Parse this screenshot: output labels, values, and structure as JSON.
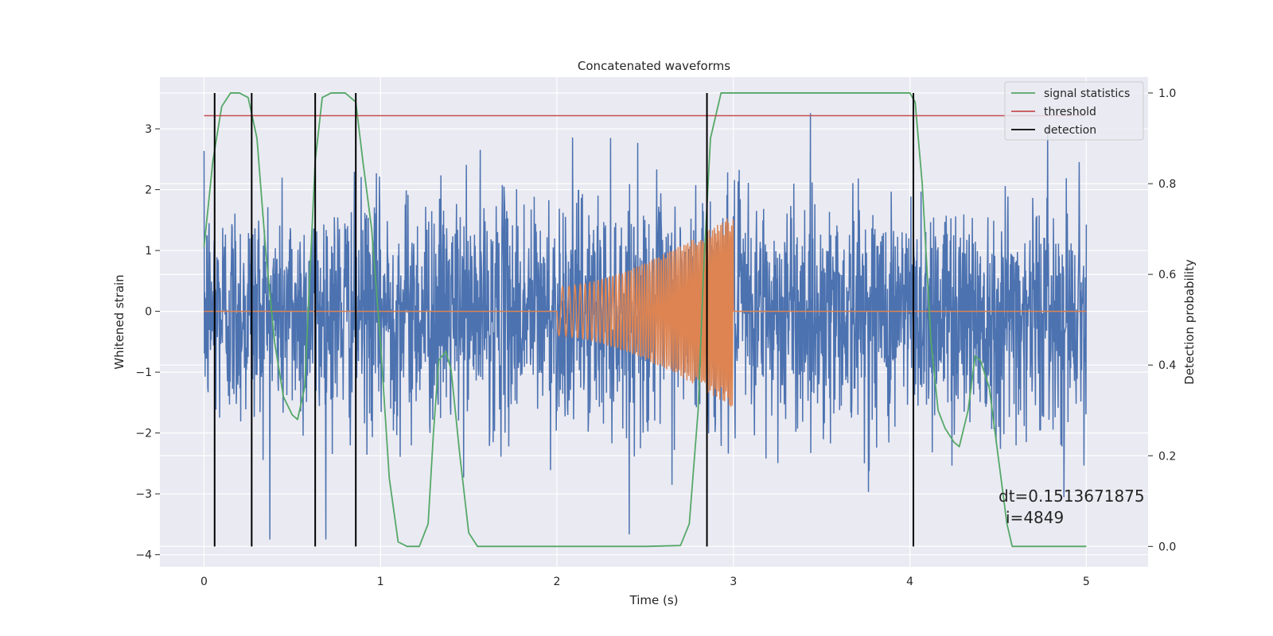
{
  "chart_data": {
    "type": "line",
    "title": "Concatenated waveforms",
    "xlabel": "Time (s)",
    "ylabel": "Whitened strain",
    "y2label": "Detection probability",
    "xlim": [
      -0.25,
      5.35
    ],
    "ylim": [
      -4.2,
      3.85
    ],
    "y2lim": [
      -0.045,
      1.035
    ],
    "x_ticks": [
      0,
      1,
      2,
      3,
      4,
      5
    ],
    "x_tick_labels": [
      "0",
      "1",
      "2",
      "3",
      "4",
      "5"
    ],
    "y_ticks": [
      -4,
      -3,
      -2,
      -1,
      0,
      1,
      2,
      3
    ],
    "y_tick_labels": [
      "−4",
      "−3",
      "−2",
      "−1",
      "0",
      "1",
      "2",
      "3"
    ],
    "y2_ticks": [
      0.0,
      0.2,
      0.4,
      0.6,
      0.8,
      1.0
    ],
    "y2_tick_labels": [
      "0.0",
      "0.2",
      "0.4",
      "0.6",
      "0.8",
      "1.0"
    ],
    "grid": true,
    "legend_position": "top-right",
    "series": [
      {
        "name": "",
        "axis": "left",
        "color": "#4c72b0",
        "kind": "noise",
        "x_range": [
          0,
          5
        ],
        "amplitude_range": [
          -3.75,
          3.5
        ]
      },
      {
        "name": "",
        "axis": "left",
        "color": "#dd8452",
        "kind": "chirp",
        "x_range": [
          0,
          5
        ],
        "chirp_start": 2.0,
        "chirp_end": 3.0,
        "amplitude_start": 0.4,
        "amplitude_end": 1.6
      },
      {
        "name": "signal statistics",
        "axis": "right",
        "color": "#55a868",
        "points": [
          [
            0.0,
            0.66
          ],
          [
            0.05,
            0.85
          ],
          [
            0.1,
            0.97
          ],
          [
            0.15,
            1.0
          ],
          [
            0.2,
            1.0
          ],
          [
            0.25,
            0.99
          ],
          [
            0.3,
            0.9
          ],
          [
            0.35,
            0.65
          ],
          [
            0.4,
            0.45
          ],
          [
            0.45,
            0.33
          ],
          [
            0.5,
            0.29
          ],
          [
            0.53,
            0.28
          ],
          [
            0.57,
            0.35
          ],
          [
            0.6,
            0.6
          ],
          [
            0.63,
            0.85
          ],
          [
            0.67,
            0.99
          ],
          [
            0.72,
            1.0
          ],
          [
            0.8,
            1.0
          ],
          [
            0.86,
            0.98
          ],
          [
            0.9,
            0.85
          ],
          [
            0.95,
            0.7
          ],
          [
            1.0,
            0.45
          ],
          [
            1.05,
            0.15
          ],
          [
            1.1,
            0.01
          ],
          [
            1.15,
            0.0
          ],
          [
            1.22,
            0.0
          ],
          [
            1.27,
            0.05
          ],
          [
            1.3,
            0.25
          ],
          [
            1.33,
            0.41
          ],
          [
            1.37,
            0.43
          ],
          [
            1.4,
            0.39
          ],
          [
            1.45,
            0.2
          ],
          [
            1.5,
            0.03
          ],
          [
            1.55,
            0.0
          ],
          [
            2.0,
            0.0
          ],
          [
            2.5,
            0.0
          ],
          [
            2.7,
            0.002
          ],
          [
            2.75,
            0.05
          ],
          [
            2.8,
            0.3
          ],
          [
            2.83,
            0.6
          ],
          [
            2.87,
            0.9
          ],
          [
            2.93,
            1.0
          ],
          [
            3.0,
            1.0
          ],
          [
            3.5,
            1.0
          ],
          [
            4.0,
            1.0
          ],
          [
            4.03,
            0.98
          ],
          [
            4.07,
            0.8
          ],
          [
            4.12,
            0.45
          ],
          [
            4.16,
            0.3
          ],
          [
            4.2,
            0.26
          ],
          [
            4.25,
            0.23
          ],
          [
            4.28,
            0.22
          ],
          [
            4.33,
            0.3
          ],
          [
            4.37,
            0.42
          ],
          [
            4.4,
            0.41
          ],
          [
            4.45,
            0.35
          ],
          [
            4.5,
            0.2
          ],
          [
            4.55,
            0.05
          ],
          [
            4.58,
            0.0
          ],
          [
            4.75,
            0.0
          ],
          [
            5.0,
            0.0
          ]
        ]
      },
      {
        "name": "threshold",
        "axis": "right",
        "color": "#c44e52",
        "x_range": [
          0,
          5
        ],
        "value": 0.95
      },
      {
        "name": "detection",
        "axis": "right",
        "color": "#000000",
        "x": [
          0.06,
          0.27,
          0.63,
          0.86,
          2.85,
          4.02
        ],
        "y_range": [
          0.0,
          1.0
        ]
      }
    ],
    "annotations": [
      "dt=0.1513671875",
      "i=4849"
    ]
  }
}
